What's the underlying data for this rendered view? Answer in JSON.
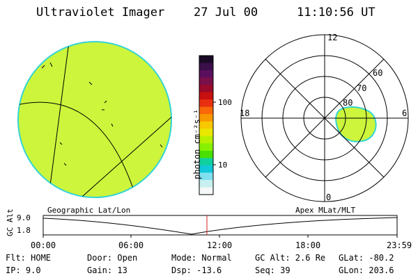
{
  "header": {
    "title": "Ultraviolet Imager",
    "date": "27 Jul 00",
    "time": "11:10:56 UT"
  },
  "colorbar": {
    "label": "photon cm⁻²s⁻¹",
    "ticks": [
      "100",
      "10"
    ],
    "colors": [
      "#1a0a26",
      "#3a0f4a",
      "#5a0f5c",
      "#7a0f4a",
      "#9a0a2a",
      "#c81010",
      "#e83010",
      "#f86808",
      "#f89800",
      "#f8c800",
      "#e8e800",
      "#b8f000",
      "#88f000",
      "#48e000",
      "#10d0a0",
      "#10c8d8",
      "#80e0f0",
      "#c8f0f0",
      "#f4f8f8"
    ]
  },
  "image_panel": {
    "fill_color": "#ccf53c",
    "rim_color": "#34d4d4"
  },
  "polar_plot": {
    "lat_labels": [
      "80",
      "70",
      "60"
    ],
    "mlt_labels": {
      "top": "12",
      "left": "18",
      "right": "6",
      "bottom": "0"
    },
    "oval_color": "#ccf53c",
    "oval_rim": "#34d4d4"
  },
  "altitude_plot": {
    "y_label": "GC Alt",
    "y_ticks": [
      "9.0",
      "1.8"
    ],
    "left_title": "Geographic Lat/Lon",
    "right_title": "Apex MLat/MLT",
    "x_ticks": [
      "00:00",
      "06:00",
      "12:00",
      "18:00",
      "23:59"
    ],
    "marker_color": "#d02020"
  },
  "info": {
    "row1": [
      "Flt: HOME",
      "Door: Open",
      "Mode: Normal",
      "GC Alt: 2.6 Re",
      "GLat: -80.2"
    ],
    "row2": [
      "IP:  9.0",
      "Gain: 13",
      "Dsp:  -13.6",
      "Seq: 39",
      "GLon: 203.6"
    ]
  }
}
